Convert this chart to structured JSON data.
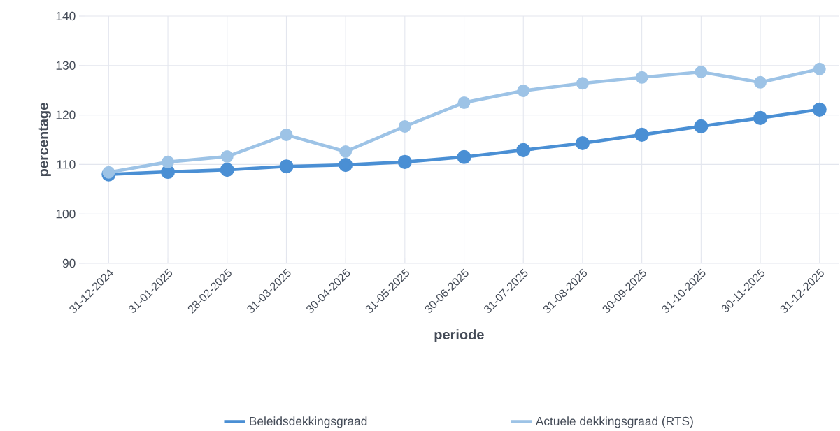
{
  "chart_data": {
    "type": "line",
    "xlabel": "periode",
    "ylabel": "percentage",
    "categories": [
      "31-12-2024",
      "31-01-2025",
      "28-02-2025",
      "31-03-2025",
      "30-04-2025",
      "31-05-2025",
      "30-06-2025",
      "31-07-2025",
      "31-08-2025",
      "30-09-2025",
      "31-10-2025",
      "30-11-2025",
      "31-12-2025"
    ],
    "series": [
      {
        "name": "Beleidsdekkingsgraad",
        "color": "#4a8fd4",
        "values": [
          108.0,
          108.5,
          108.9,
          109.6,
          109.9,
          110.5,
          111.5,
          112.9,
          114.3,
          116.0,
          117.7,
          119.4,
          121.1
        ]
      },
      {
        "name": "Actuele dekkingsgraad (RTS)",
        "color": "#9dc3e6",
        "values": [
          108.4,
          110.5,
          111.6,
          116.0,
          112.6,
          117.7,
          122.5,
          124.9,
          126.4,
          127.6,
          128.7,
          126.6,
          129.3
        ]
      }
    ],
    "ylim": [
      90,
      140
    ],
    "yticks": [
      90,
      100,
      110,
      120,
      130,
      140
    ],
    "grid": true,
    "legend": "bottom",
    "marker": "circle",
    "line_style": "solid"
  }
}
